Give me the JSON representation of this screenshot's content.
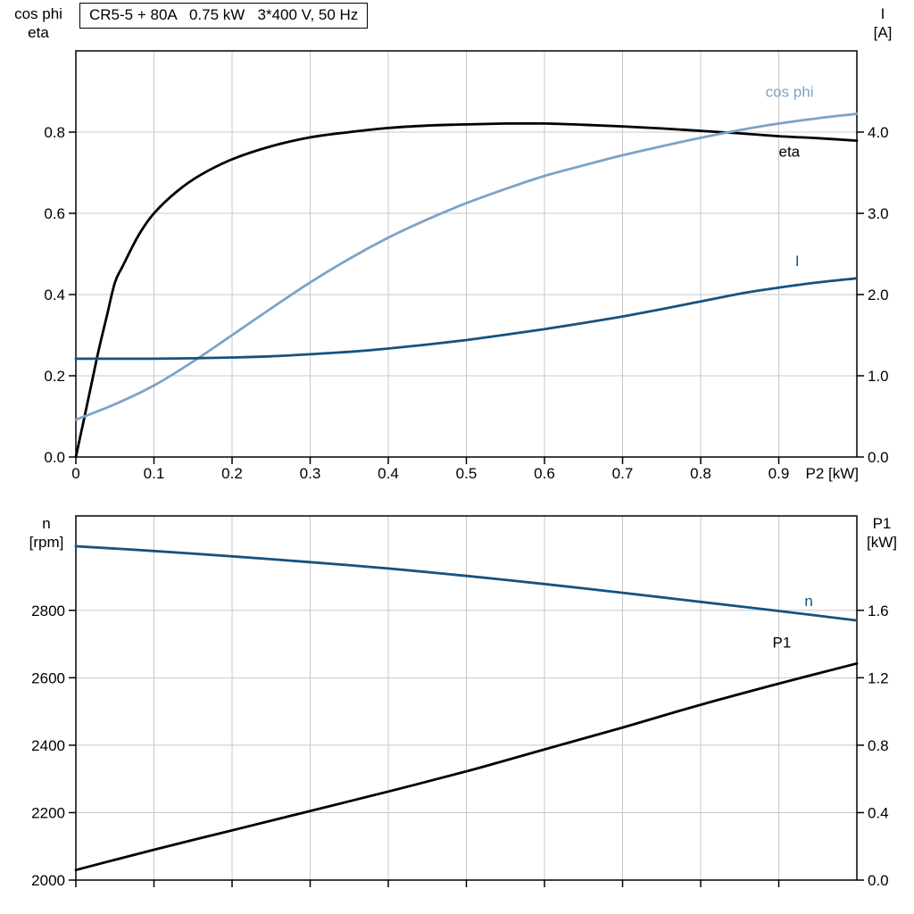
{
  "chart_data": [
    {
      "type": "line",
      "title": "CR5-5 + 80A   0.75 kW   3*400 V, 50 Hz",
      "x_label": "P2 [kW]",
      "x_range": [
        0,
        1.0
      ],
      "x_ticks": [
        0,
        0.1,
        0.2,
        0.3,
        0.4,
        0.5,
        0.6,
        0.7,
        0.8,
        0.9
      ],
      "x_tick_labels": [
        "0",
        "0.1",
        "0.2",
        "0.3",
        "0.4",
        "0.5",
        "0.6",
        "0.7",
        "0.8",
        "0.9"
      ],
      "grid": true,
      "grid_color": "#c8c8c8",
      "frame_color": "#000000",
      "left_axis": {
        "title_line1": "cos phi",
        "title_line2": "eta",
        "range": [
          0,
          1.0
        ],
        "tick_values": [
          0,
          0.2,
          0.4,
          0.6,
          0.8
        ],
        "tick_labels": [
          "0.0",
          "0.2",
          "0.4",
          "0.6",
          "0.8"
        ]
      },
      "right_axis": {
        "title_line1": "I",
        "title_line2": "[A]",
        "range": [
          0,
          5.0
        ],
        "tick_values": [
          0,
          1,
          2,
          3,
          4
        ],
        "tick_labels": [
          "0.0",
          "1.0",
          "2.0",
          "3.0",
          "4.0"
        ]
      },
      "series": [
        {
          "name": "eta",
          "axis": "left",
          "color": "#000000",
          "label_at": [
            0.9,
            0.753
          ],
          "points": [
            [
              0,
              0
            ],
            [
              0.01,
              0.09
            ],
            [
              0.02,
              0.18
            ],
            [
              0.03,
              0.27
            ],
            [
              0.04,
              0.35
            ],
            [
              0.05,
              0.43
            ],
            [
              0.06,
              0.47
            ],
            [
              0.08,
              0.545
            ],
            [
              0.1,
              0.6
            ],
            [
              0.13,
              0.655
            ],
            [
              0.16,
              0.695
            ],
            [
              0.2,
              0.733
            ],
            [
              0.25,
              0.765
            ],
            [
              0.3,
              0.787
            ],
            [
              0.35,
              0.8
            ],
            [
              0.4,
              0.81
            ],
            [
              0.45,
              0.816
            ],
            [
              0.5,
              0.819
            ],
            [
              0.55,
              0.821
            ],
            [
              0.6,
              0.821
            ],
            [
              0.65,
              0.818
            ],
            [
              0.7,
              0.814
            ],
            [
              0.75,
              0.809
            ],
            [
              0.8,
              0.803
            ],
            [
              0.85,
              0.797
            ],
            [
              0.9,
              0.79
            ],
            [
              0.95,
              0.785
            ],
            [
              1,
              0.779
            ]
          ]
        },
        {
          "name": "cos phi",
          "axis": "left",
          "color": "#7da3c6",
          "label_at": [
            0.883,
            0.9
          ],
          "points": [
            [
              0,
              0.092
            ],
            [
              0.05,
              0.13
            ],
            [
              0.1,
              0.176
            ],
            [
              0.15,
              0.235
            ],
            [
              0.2,
              0.3
            ],
            [
              0.25,
              0.366
            ],
            [
              0.3,
              0.43
            ],
            [
              0.35,
              0.488
            ],
            [
              0.4,
              0.54
            ],
            [
              0.45,
              0.585
            ],
            [
              0.5,
              0.625
            ],
            [
              0.55,
              0.66
            ],
            [
              0.6,
              0.692
            ],
            [
              0.65,
              0.718
            ],
            [
              0.7,
              0.743
            ],
            [
              0.75,
              0.765
            ],
            [
              0.8,
              0.786
            ],
            [
              0.85,
              0.805
            ],
            [
              0.9,
              0.821
            ],
            [
              0.95,
              0.834
            ],
            [
              1,
              0.845
            ]
          ]
        },
        {
          "name": "I",
          "axis": "right",
          "color": "#17527f",
          "label_at": [
            0.921,
            2.42
          ],
          "points": [
            [
              0,
              1.21
            ],
            [
              0.05,
              1.21
            ],
            [
              0.1,
              1.21
            ],
            [
              0.15,
              1.215
            ],
            [
              0.2,
              1.225
            ],
            [
              0.25,
              1.24
            ],
            [
              0.3,
              1.265
            ],
            [
              0.35,
              1.295
            ],
            [
              0.4,
              1.335
            ],
            [
              0.45,
              1.385
            ],
            [
              0.5,
              1.44
            ],
            [
              0.55,
              1.505
            ],
            [
              0.6,
              1.575
            ],
            [
              0.65,
              1.65
            ],
            [
              0.7,
              1.73
            ],
            [
              0.75,
              1.82
            ],
            [
              0.8,
              1.915
            ],
            [
              0.85,
              2.01
            ],
            [
              0.9,
              2.085
            ],
            [
              0.95,
              2.15
            ],
            [
              1,
              2.2
            ]
          ]
        }
      ]
    },
    {
      "type": "line",
      "title": "",
      "x_label": "",
      "x_range": [
        0,
        1.0
      ],
      "x_ticks": [
        0,
        0.1,
        0.2,
        0.3,
        0.4,
        0.5,
        0.6,
        0.7,
        0.8,
        0.9
      ],
      "x_tick_labels": [],
      "grid": true,
      "grid_color": "#c8c8c8",
      "frame_color": "#000000",
      "left_axis": {
        "title_line1": "n",
        "title_line2": "[rpm]",
        "range": [
          2000,
          3080
        ],
        "tick_values": [
          2000,
          2200,
          2400,
          2600,
          2800
        ],
        "tick_labels": [
          "2000",
          "2200",
          "2400",
          "2600",
          "2800"
        ]
      },
      "right_axis": {
        "title_line1": "P1",
        "title_line2": "[kW]",
        "range": [
          0,
          2.16
        ],
        "tick_values": [
          0,
          0.4,
          0.8,
          1.2,
          1.6
        ],
        "tick_labels": [
          "0.0",
          "0.4",
          "0.8",
          "1.2",
          "1.6"
        ]
      },
      "series": [
        {
          "name": "n",
          "axis": "left",
          "color": "#17527f",
          "label_at": [
            0.933,
            2828
          ],
          "points": [
            [
              0,
              2990
            ],
            [
              0.1,
              2976
            ],
            [
              0.2,
              2960
            ],
            [
              0.3,
              2943
            ],
            [
              0.4,
              2924
            ],
            [
              0.5,
              2902
            ],
            [
              0.6,
              2878
            ],
            [
              0.7,
              2852
            ],
            [
              0.8,
              2825
            ],
            [
              0.9,
              2798
            ],
            [
              1,
              2770
            ]
          ]
        },
        {
          "name": "P1",
          "axis": "right",
          "color": "#000000",
          "label_at": [
            0.892,
            1.41
          ],
          "points": [
            [
              0,
              0.06
            ],
            [
              0.1,
              0.18
            ],
            [
              0.2,
              0.295
            ],
            [
              0.3,
              0.41
            ],
            [
              0.4,
              0.525
            ],
            [
              0.5,
              0.645
            ],
            [
              0.6,
              0.775
            ],
            [
              0.7,
              0.905
            ],
            [
              0.8,
              1.04
            ],
            [
              0.9,
              1.165
            ],
            [
              1,
              1.285
            ]
          ]
        }
      ]
    }
  ]
}
